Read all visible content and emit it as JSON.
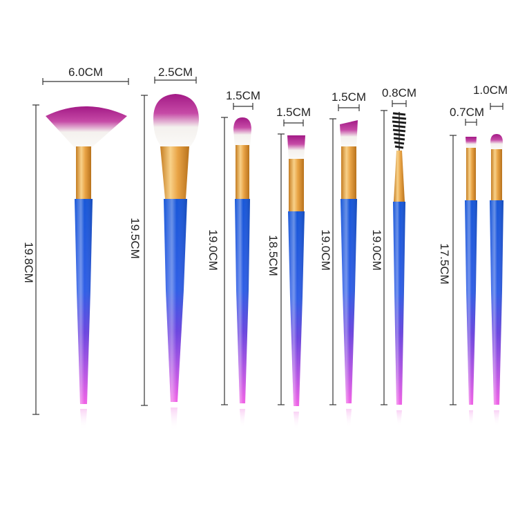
{
  "palette": {
    "handle_top": "#1656d8",
    "handle_mid": "#4c3fe0",
    "handle_bottom": "#e85ce0",
    "ferrule": "#e9a446",
    "bristle_tip": "#a31a86",
    "bristle_base": "#f4f1ee",
    "spoolie": "#1c1c1c",
    "dimension_line": "#333333"
  },
  "brushes": [
    {
      "name": "fan-brush",
      "head_shape": "fan",
      "width_label": "6.0CM",
      "length_label": "19.8CM"
    },
    {
      "name": "powder-brush",
      "head_shape": "round-large",
      "width_label": "2.5CM",
      "length_label": "19.5CM"
    },
    {
      "name": "domed-brush",
      "head_shape": "domed",
      "width_label": "1.5CM",
      "length_label": "19.0CM"
    },
    {
      "name": "flat-shader-brush",
      "head_shape": "flat",
      "width_label": "1.5CM",
      "length_label": "18.5CM"
    },
    {
      "name": "angled-brush",
      "head_shape": "angled",
      "width_label": "1.5CM",
      "length_label": "19.0CM"
    },
    {
      "name": "spoolie-brush",
      "head_shape": "spoolie",
      "width_label": "0.8CM",
      "length_label": "19.0CM"
    },
    {
      "name": "small-flat-brush",
      "head_shape": "small-flat",
      "width_label": "0.7CM",
      "length_label": ""
    },
    {
      "name": "small-round-brush",
      "head_shape": "small-round",
      "width_label": "1.0CM",
      "length_label": ""
    }
  ],
  "shared_length_label": "17.5CM"
}
